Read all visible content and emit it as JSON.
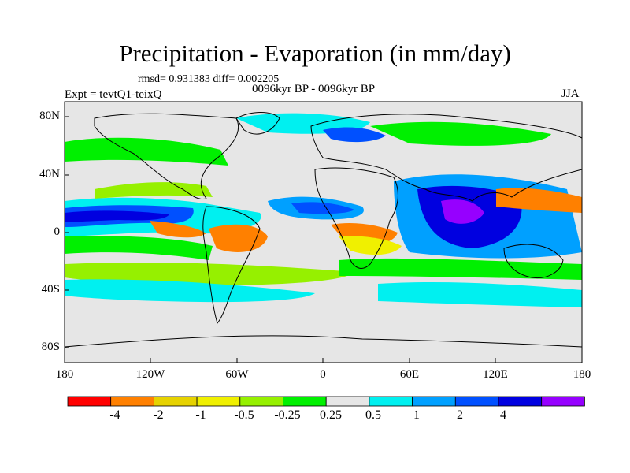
{
  "title": "Precipitation - Evaporation (in mm/day)",
  "stats": "rmsd= 0.931383  diff= 0.002205",
  "experiment": "Expt = tevtQ1-teixQ",
  "period": "0096kyr BP - 0096kyr BP",
  "season": "JJA",
  "lat_labels": [
    "80N",
    "40N",
    "0",
    "40S",
    "80S"
  ],
  "lon_labels": [
    "180",
    "120W",
    "60W",
    "0",
    "60E",
    "120E",
    "180"
  ],
  "colorbar": {
    "labels": [
      "-4",
      "-2",
      "-1",
      "-0.5",
      "-0.25",
      "0.25",
      "0.5",
      "1",
      "2",
      "4"
    ],
    "colors": [
      "#ff0000",
      "#ff8000",
      "#e6d200",
      "#f0f000",
      "#96f000",
      "#00f000",
      "#e6e6e6",
      "#00f0f0",
      "#00a0ff",
      "#0050ff",
      "#0000e0",
      "#9600ff"
    ]
  },
  "map_colors": {
    "land_outline": "#000000",
    "background": "#e6e6e6"
  }
}
